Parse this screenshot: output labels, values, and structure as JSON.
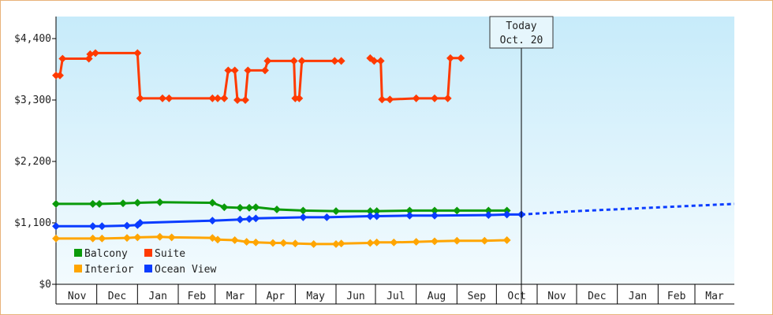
{
  "chart_data": {
    "type": "line",
    "title": "",
    "xlabel": "",
    "ylabel": "",
    "ylim": [
      0,
      4400
    ],
    "yticks": [
      {
        "value": 0,
        "label": "$0"
      },
      {
        "value": 1100,
        "label": "$1,100"
      },
      {
        "value": 2200,
        "label": "$2,200"
      },
      {
        "value": 3300,
        "label": "$3,300"
      },
      {
        "value": 4400,
        "label": "$4,400"
      }
    ],
    "x_start": "2021-10-31",
    "x_end": "2022-03-31",
    "months": [
      {
        "label": "Nov",
        "start": "2020-11-01"
      },
      {
        "label": "Dec",
        "start": "2020-12-01"
      },
      {
        "label": "Jan",
        "start": "2021-01-01"
      },
      {
        "label": "Feb",
        "start": "2021-02-01"
      },
      {
        "label": "Mar",
        "start": "2021-03-01"
      },
      {
        "label": "Apr",
        "start": "2021-04-01"
      },
      {
        "label": "May",
        "start": "2021-05-01"
      },
      {
        "label": "Jun",
        "start": "2021-06-01"
      },
      {
        "label": "Jul",
        "start": "2021-07-01"
      },
      {
        "label": "Aug",
        "start": "2021-08-01"
      },
      {
        "label": "Sep",
        "start": "2021-09-01"
      },
      {
        "label": "Oct",
        "start": "2021-10-01"
      },
      {
        "label": "Nov",
        "start": "2021-11-01"
      },
      {
        "label": "Dec",
        "start": "2021-12-01"
      },
      {
        "label": "Jan",
        "start": "2022-01-01"
      },
      {
        "label": "Feb",
        "start": "2022-02-01"
      },
      {
        "label": "Mar",
        "start": "2022-03-01"
      }
    ],
    "x_range": [
      "2020-10-31",
      "2022-03-31"
    ],
    "today": {
      "line1": "Today",
      "line2": "Oct. 20",
      "date": "2021-10-20"
    },
    "grid": false,
    "legend": {
      "position": "bottom-left"
    },
    "series": [
      {
        "name": "Suite",
        "color": "#ff3a00",
        "points": [
          [
            "2020-10-31",
            3740
          ],
          [
            "2020-11-03",
            3740
          ],
          [
            "2020-11-05",
            4040
          ],
          [
            "2020-11-25",
            4040
          ],
          [
            "2020-11-26",
            4120
          ],
          [
            "2020-11-30",
            4140
          ],
          [
            "2021-01-01",
            4140
          ],
          [
            "2021-01-03",
            3330
          ],
          [
            "2021-01-20",
            3330
          ],
          [
            "2021-01-25",
            3330
          ],
          [
            "2021-02-27",
            3330
          ],
          [
            "2021-03-03",
            3330
          ],
          [
            "2021-03-08",
            3330
          ],
          [
            "2021-03-11",
            3830
          ],
          [
            "2021-03-16",
            3830
          ],
          [
            "2021-03-18",
            3300
          ],
          [
            "2021-03-24",
            3300
          ],
          [
            "2021-03-26",
            3830
          ],
          [
            "2021-04-08",
            3830
          ],
          [
            "2021-04-10",
            4000
          ],
          [
            "2021-04-30",
            4000
          ],
          [
            "2021-05-01",
            3330
          ],
          [
            "2021-05-04",
            3330
          ],
          [
            "2021-05-06",
            4000
          ],
          [
            "2021-05-31",
            4000
          ],
          [
            "2021-06-05",
            4000
          ],
          [
            null,
            null
          ],
          [
            "2021-06-27",
            4050
          ],
          [
            "2021-06-30",
            4000
          ],
          [
            "2021-07-05",
            4000
          ],
          [
            "2021-07-06",
            3310
          ],
          [
            "2021-07-12",
            3310
          ],
          [
            "2021-08-01",
            3330
          ],
          [
            "2021-08-15",
            3330
          ],
          [
            "2021-08-25",
            3330
          ],
          [
            "2021-08-27",
            4050
          ],
          [
            "2021-09-04",
            4050
          ]
        ]
      },
      {
        "name": "Balcony",
        "color": "#0a9a0a",
        "points": [
          [
            "2020-10-31",
            1440
          ],
          [
            "2020-11-28",
            1440
          ],
          [
            "2020-12-03",
            1440
          ],
          [
            "2020-12-21",
            1450
          ],
          [
            "2021-01-01",
            1460
          ],
          [
            "2021-01-18",
            1470
          ],
          [
            "2021-02-27",
            1460
          ],
          [
            "2021-03-08",
            1380
          ],
          [
            "2021-03-20",
            1370
          ],
          [
            "2021-03-27",
            1370
          ],
          [
            "2021-04-01",
            1380
          ],
          [
            "2021-04-17",
            1340
          ],
          [
            "2021-05-07",
            1320
          ],
          [
            "2021-06-01",
            1310
          ],
          [
            "2021-06-27",
            1310
          ],
          [
            "2021-07-02",
            1310
          ],
          [
            "2021-07-27",
            1320
          ],
          [
            "2021-08-15",
            1320
          ],
          [
            "2021-09-01",
            1320
          ],
          [
            "2021-09-25",
            1320
          ],
          [
            "2021-10-09",
            1320
          ]
        ]
      },
      {
        "name": "Ocean View",
        "color": "#0a3cff",
        "points": [
          [
            "2020-10-31",
            1040
          ],
          [
            "2020-11-28",
            1040
          ],
          [
            "2020-12-05",
            1040
          ],
          [
            "2020-12-24",
            1050
          ],
          [
            "2021-01-01",
            1060
          ],
          [
            "2021-01-03",
            1100
          ],
          [
            "2021-02-27",
            1140
          ],
          [
            "2021-03-20",
            1160
          ],
          [
            "2021-03-27",
            1170
          ],
          [
            "2021-04-01",
            1180
          ],
          [
            "2021-05-07",
            1200
          ],
          [
            "2021-05-25",
            1200
          ],
          [
            "2021-06-27",
            1220
          ],
          [
            "2021-07-02",
            1220
          ],
          [
            "2021-07-27",
            1230
          ],
          [
            "2021-08-15",
            1230
          ],
          [
            "2021-09-25",
            1240
          ],
          [
            "2021-10-09",
            1250
          ],
          [
            "2021-10-20",
            1250
          ]
        ]
      },
      {
        "name": "Interior",
        "color": "#ffa500",
        "points": [
          [
            "2020-10-31",
            820
          ],
          [
            "2020-11-28",
            820
          ],
          [
            "2020-12-05",
            820
          ],
          [
            "2020-12-24",
            830
          ],
          [
            "2021-01-01",
            840
          ],
          [
            "2021-01-18",
            850
          ],
          [
            "2021-01-27",
            840
          ],
          [
            "2021-02-27",
            830
          ],
          [
            "2021-03-03",
            800
          ],
          [
            "2021-03-16",
            790
          ],
          [
            "2021-03-25",
            760
          ],
          [
            "2021-04-01",
            750
          ],
          [
            "2021-04-14",
            740
          ],
          [
            "2021-04-22",
            740
          ],
          [
            "2021-05-01",
            730
          ],
          [
            "2021-05-15",
            720
          ],
          [
            "2021-06-01",
            720
          ],
          [
            "2021-06-05",
            730
          ],
          [
            "2021-06-27",
            740
          ],
          [
            "2021-07-02",
            750
          ],
          [
            "2021-07-15",
            750
          ],
          [
            "2021-08-01",
            760
          ],
          [
            "2021-08-15",
            770
          ],
          [
            "2021-09-01",
            780
          ],
          [
            "2021-09-22",
            780
          ],
          [
            "2021-10-09",
            790
          ]
        ]
      }
    ],
    "projection": {
      "series": "Ocean View",
      "color": "#0a3cff",
      "points": [
        [
          "2021-10-20",
          1250
        ],
        [
          "2021-12-01",
          1310
        ],
        [
          "2022-03-31",
          1440
        ]
      ]
    }
  }
}
